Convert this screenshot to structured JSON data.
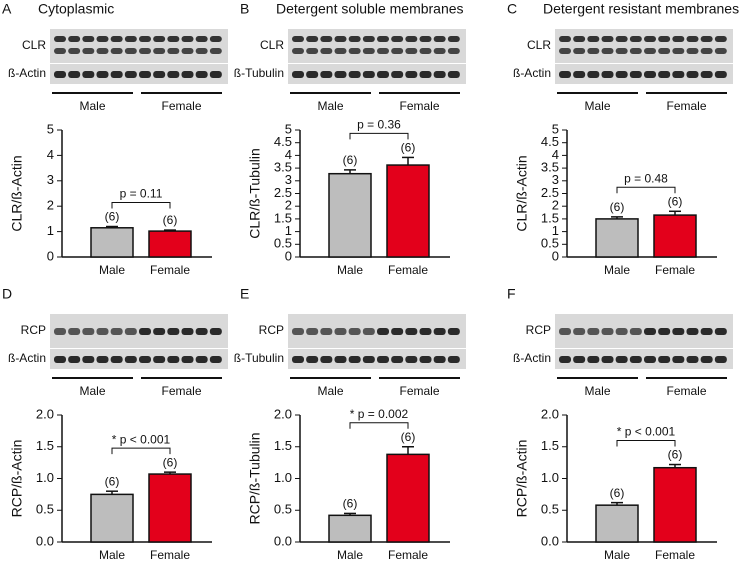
{
  "chart_data": [
    {
      "type": "bar",
      "panel": "A",
      "title": "Cytoplasmic",
      "blot_rows": [
        "CLR",
        "ß-Actin"
      ],
      "groups": [
        "Male",
        "Female"
      ],
      "ylabel": "CLR/ß-Actin",
      "categories": [
        "Male",
        "Female"
      ],
      "values": [
        1.15,
        1.02
      ],
      "errors": [
        0.05,
        0.04
      ],
      "n_labels": [
        "(6)",
        "(6)"
      ],
      "annotation": "p = 0.11",
      "colors": [
        "#bdbdbd",
        "#e3001b"
      ],
      "ylim": [
        0,
        5
      ],
      "yticks": [
        0,
        1,
        2,
        3,
        4,
        5
      ]
    },
    {
      "type": "bar",
      "panel": "B",
      "title": "Detergent soluble membranes",
      "blot_rows": [
        "CLR",
        "ß-Tubulin"
      ],
      "groups": [
        "Male",
        "Female"
      ],
      "ylabel": "CLR/ß-Tubulin",
      "categories": [
        "Male",
        "Female"
      ],
      "values": [
        3.28,
        3.62
      ],
      "errors": [
        0.15,
        0.3
      ],
      "n_labels": [
        "(6)",
        "(6)"
      ],
      "annotation": "p = 0.36",
      "colors": [
        "#bdbdbd",
        "#e3001b"
      ],
      "ylim": [
        0,
        5
      ],
      "yticks": [
        0,
        0.5,
        1,
        1.5,
        2,
        2.5,
        3,
        3.5,
        4,
        4.5,
        5
      ]
    },
    {
      "type": "bar",
      "panel": "C",
      "title": "Detergent resistant membranes",
      "blot_rows": [
        "CLR",
        "ß-Actin"
      ],
      "groups": [
        "Male",
        "Female"
      ],
      "ylabel": "CLR/ß-Actin",
      "categories": [
        "Male",
        "Female"
      ],
      "values": [
        1.5,
        1.65
      ],
      "errors": [
        0.08,
        0.15
      ],
      "n_labels": [
        "(6)",
        "(6)"
      ],
      "annotation": "p = 0.48",
      "colors": [
        "#bdbdbd",
        "#e3001b"
      ],
      "ylim": [
        0,
        5
      ],
      "yticks": [
        0,
        0.5,
        1,
        1.5,
        2,
        2.5,
        3,
        3.5,
        4,
        4.5,
        5
      ]
    },
    {
      "type": "bar",
      "panel": "D",
      "blot_rows": [
        "RCP",
        "ß-Actin"
      ],
      "groups": [
        "Male",
        "Female"
      ],
      "ylabel": "RCP/ß-Actin",
      "categories": [
        "Male",
        "Female"
      ],
      "values": [
        0.75,
        1.07
      ],
      "errors": [
        0.05,
        0.03
      ],
      "n_labels": [
        "(6)",
        "(6)"
      ],
      "annotation": "* p < 0.001",
      "colors": [
        "#bdbdbd",
        "#e3001b"
      ],
      "ylim": [
        0,
        2
      ],
      "yticks": [
        {
          "value": 0,
          "label": "0.0"
        },
        0.5,
        {
          "value": 1,
          "label": "1.0"
        },
        1.5,
        {
          "value": 2,
          "label": "2.0"
        }
      ]
    },
    {
      "type": "bar",
      "panel": "E",
      "blot_rows": [
        "RCP",
        "ß-Tubulin"
      ],
      "groups": [
        "Male",
        "Female"
      ],
      "ylabel": "RCP/ß-Tubulin",
      "categories": [
        "Male",
        "Female"
      ],
      "values": [
        0.42,
        1.38
      ],
      "errors": [
        0.03,
        0.12
      ],
      "n_labels": [
        "(6)",
        "(6)"
      ],
      "annotation": "* p = 0.002",
      "colors": [
        "#bdbdbd",
        "#e3001b"
      ],
      "ylim": [
        0,
        2
      ],
      "yticks": [
        {
          "value": 0,
          "label": "0.0"
        },
        0.5,
        {
          "value": 1,
          "label": "1.0"
        },
        1.5,
        {
          "value": 2,
          "label": "2.0"
        }
      ]
    },
    {
      "type": "bar",
      "panel": "F",
      "blot_rows": [
        "RCP",
        "ß-Actin"
      ],
      "groups": [
        "Male",
        "Female"
      ],
      "ylabel": "RCP/ß-Actin",
      "categories": [
        "Male",
        "Female"
      ],
      "values": [
        0.58,
        1.17
      ],
      "errors": [
        0.04,
        0.05
      ],
      "n_labels": [
        "(6)",
        "(6)"
      ],
      "annotation": "* p < 0.001",
      "colors": [
        "#bdbdbd",
        "#e3001b"
      ],
      "ylim": [
        0,
        2
      ],
      "yticks": [
        {
          "value": 0,
          "label": "0.0"
        },
        0.5,
        {
          "value": 1,
          "label": "1.0"
        },
        1.5,
        {
          "value": 2,
          "label": "2.0"
        }
      ]
    }
  ]
}
